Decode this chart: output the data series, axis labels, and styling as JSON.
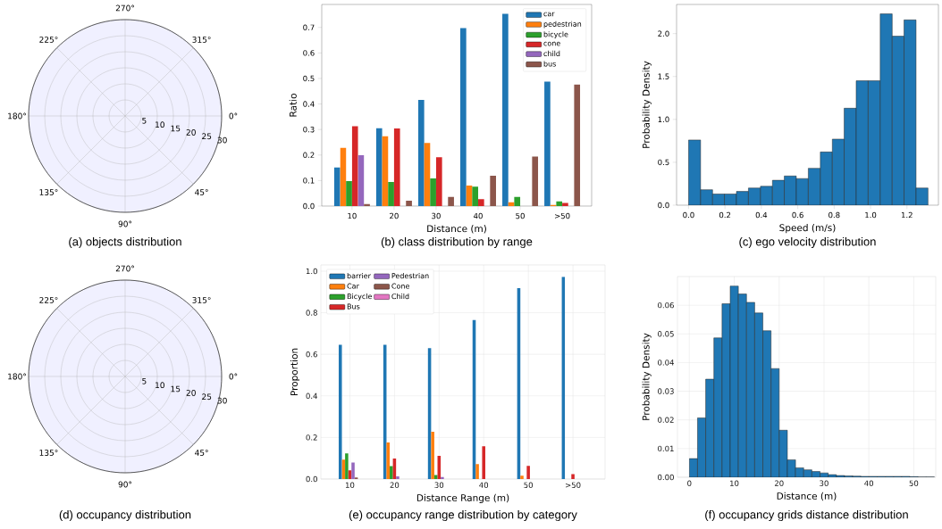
{
  "chart_data": [
    {
      "type": "other",
      "title": "(a) objects distribution",
      "categories": [
        "0°",
        "45°",
        "90°",
        "135°",
        "180°",
        "225°",
        "270°",
        "315°"
      ],
      "annotations": [
        "5",
        "10",
        "15",
        "20",
        "25",
        "30"
      ]
    },
    {
      "type": "bar",
      "title": "(b) class distribution by range",
      "xlabel": "Distance (m)",
      "ylabel": "Ratio",
      "categories": [
        "10",
        "20",
        "30",
        "40",
        "50",
        ">50"
      ],
      "ylim": [
        0,
        0.79
      ],
      "yticks": [
        {
          "value": 0,
          "label": "0.0"
        },
        {
          "value": 0.1,
          "label": "0.1"
        },
        {
          "value": 0.2,
          "label": "0.2"
        },
        {
          "value": 0.3,
          "label": "0.3"
        },
        {
          "value": 0.4,
          "label": "0.4"
        },
        {
          "value": 0.5,
          "label": "0.5"
        },
        {
          "value": 0.6,
          "label": "0.6"
        },
        {
          "value": 0.7,
          "label": "0.7"
        }
      ],
      "legend": "top right",
      "series": [
        {
          "name": "car",
          "color": "#1f77b4",
          "values": [
            0.151,
            0.305,
            0.416,
            0.697,
            0.753,
            0.488
          ]
        },
        {
          "name": "pedestrian",
          "color": "#ff7f0e",
          "values": [
            0.228,
            0.274,
            0.247,
            0.08,
            0.015,
            0.004
          ]
        },
        {
          "name": "bicycle",
          "color": "#2ca02c",
          "values": [
            0.098,
            0.094,
            0.108,
            0.076,
            0.036,
            0.018
          ]
        },
        {
          "name": "cone",
          "color": "#d62728",
          "values": [
            0.313,
            0.304,
            0.191,
            0.027,
            0,
            0.012
          ]
        },
        {
          "name": "child",
          "color": "#9467bd",
          "values": [
            0.2,
            0,
            0,
            0,
            0,
            0
          ]
        },
        {
          "name": "bus",
          "color": "#8c564b",
          "values": [
            0.008,
            0.021,
            0.036,
            0.119,
            0.194,
            0.476
          ]
        }
      ]
    },
    {
      "type": "histogram",
      "title": "(c) ego velocity distribution",
      "xlabel": "Speed (m/s)",
      "ylabel": "Probability Density",
      "color": "#1f77b4",
      "bins": [
        0,
        0.066,
        0.132,
        0.197,
        0.263,
        0.329,
        0.395,
        0.461,
        0.526,
        0.592,
        0.658,
        0.724,
        0.79,
        0.855,
        0.921,
        0.987,
        1.053,
        1.119,
        1.184,
        1.25,
        1.316
      ],
      "values": [
        0.76,
        0.18,
        0.13,
        0.13,
        0.16,
        0.2,
        0.22,
        0.29,
        0.34,
        0.31,
        0.43,
        0.62,
        0.77,
        1.13,
        1.45,
        1.45,
        2.23,
        1.97,
        2.16,
        0.2
      ],
      "xlim": [
        -0.066,
        1.373
      ],
      "ylim": [
        0,
        2.34
      ],
      "xticks": [
        {
          "value": 0,
          "label": "0.0"
        },
        {
          "value": 0.2,
          "label": "0.2"
        },
        {
          "value": 0.4,
          "label": "0.4"
        },
        {
          "value": 0.6,
          "label": "0.6"
        },
        {
          "value": 0.8,
          "label": "0.8"
        },
        {
          "value": 1.0,
          "label": "1.0"
        },
        {
          "value": 1.2,
          "label": "1.2"
        }
      ],
      "yticks": [
        {
          "value": 0,
          "label": "0.0"
        },
        {
          "value": 0.5,
          "label": "0.5"
        },
        {
          "value": 1.0,
          "label": "1.0"
        },
        {
          "value": 1.5,
          "label": "1.5"
        },
        {
          "value": 2.0,
          "label": "2.0"
        }
      ]
    },
    {
      "type": "other",
      "title": "(d) occupancy distribution",
      "categories": [
        "0°",
        "45°",
        "90°",
        "135°",
        "180°",
        "225°",
        "270°",
        "315°"
      ],
      "annotations": [
        "5",
        "10",
        "15",
        "20",
        "25",
        "30"
      ]
    },
    {
      "type": "bar",
      "title": "(e) occupancy range distribution by category",
      "xlabel": "Distance Range (m)",
      "ylabel": "Proportion",
      "categories": [
        "10",
        "20",
        "30",
        "40",
        "50",
        ">50"
      ],
      "ylim": [
        0,
        1.03
      ],
      "yticks": [
        {
          "value": 0,
          "label": "0.0"
        },
        {
          "value": 0.2,
          "label": "0.2"
        },
        {
          "value": 0.4,
          "label": "0.4"
        },
        {
          "value": 0.6,
          "label": "0.6"
        },
        {
          "value": 0.8,
          "label": "0.8"
        },
        {
          "value": 1.0,
          "label": "1.0"
        }
      ],
      "grid": true,
      "legend": "top left",
      "series": [
        {
          "name": "barrier",
          "color": "#1f77b4",
          "values": [
            0.646,
            0.646,
            0.63,
            0.765,
            0.918,
            0.973
          ]
        },
        {
          "name": "Car",
          "color": "#ff7f0e",
          "values": [
            0.093,
            0.176,
            0.227,
            0.072,
            0.016,
            0
          ]
        },
        {
          "name": "Bicycle",
          "color": "#2ca02c",
          "values": [
            0.123,
            0.062,
            0.019,
            null,
            0,
            0
          ]
        },
        {
          "name": "Bus",
          "color": "#d62728",
          "values": [
            0.042,
            0.099,
            0.112,
            0.158,
            0.063,
            0.024
          ]
        },
        {
          "name": "Pedestrian",
          "color": "#9467bd",
          "values": [
            0.079,
            0.013,
            0.01,
            0,
            0,
            0
          ]
        },
        {
          "name": "Cone",
          "color": "#8c564b",
          "values": [
            0.007,
            0,
            0,
            0,
            0,
            0
          ]
        },
        {
          "name": "Child",
          "color": "#e377c2",
          "values": [
            0,
            0,
            0,
            0,
            0,
            0
          ]
        }
      ]
    },
    {
      "type": "histogram",
      "title": "(f) occupancy grids distance distribution",
      "xlabel": "Distance (m)",
      "ylabel": "Probability Density",
      "color": "#1f77b4",
      "grid": true,
      "bins": [
        0,
        1.82,
        3.64,
        5.46,
        7.28,
        9.1,
        10.92,
        12.74,
        14.56,
        16.38,
        18.2,
        20.02,
        21.84,
        23.66,
        25.48,
        27.3,
        29.12,
        30.94,
        32.76,
        34.58,
        36.4,
        38.22,
        40.04,
        41.86,
        43.68,
        45.5,
        47.32,
        49.14,
        50.96,
        52.78,
        54.6
      ],
      "values": [
        0.0065,
        0.0207,
        0.0342,
        0.0486,
        0.0605,
        0.0667,
        0.0639,
        0.061,
        0.0573,
        0.0511,
        0.0379,
        0.0164,
        0.0061,
        0.0033,
        0.0026,
        0.002,
        0.0015,
        0.0009,
        0.0006,
        0.0005,
        0.0004,
        0.0003,
        0.0003,
        0.0003,
        0.0003,
        0.0003,
        0.0003,
        0.0002,
        0.0001,
        0.0001
      ],
      "xlim": [
        -2.65,
        54.9
      ],
      "ylim": [
        0,
        0.07
      ],
      "xticks": [
        0,
        10,
        20,
        30,
        40,
        50
      ],
      "yticks": [
        {
          "value": 0,
          "label": "0.00"
        },
        {
          "value": 0.01,
          "label": "0.01"
        },
        {
          "value": 0.02,
          "label": "0.02"
        },
        {
          "value": 0.03,
          "label": "0.03"
        },
        {
          "value": 0.04,
          "label": "0.04"
        },
        {
          "value": 0.05,
          "label": "0.05"
        },
        {
          "value": 0.06,
          "label": "0.06"
        }
      ]
    }
  ]
}
